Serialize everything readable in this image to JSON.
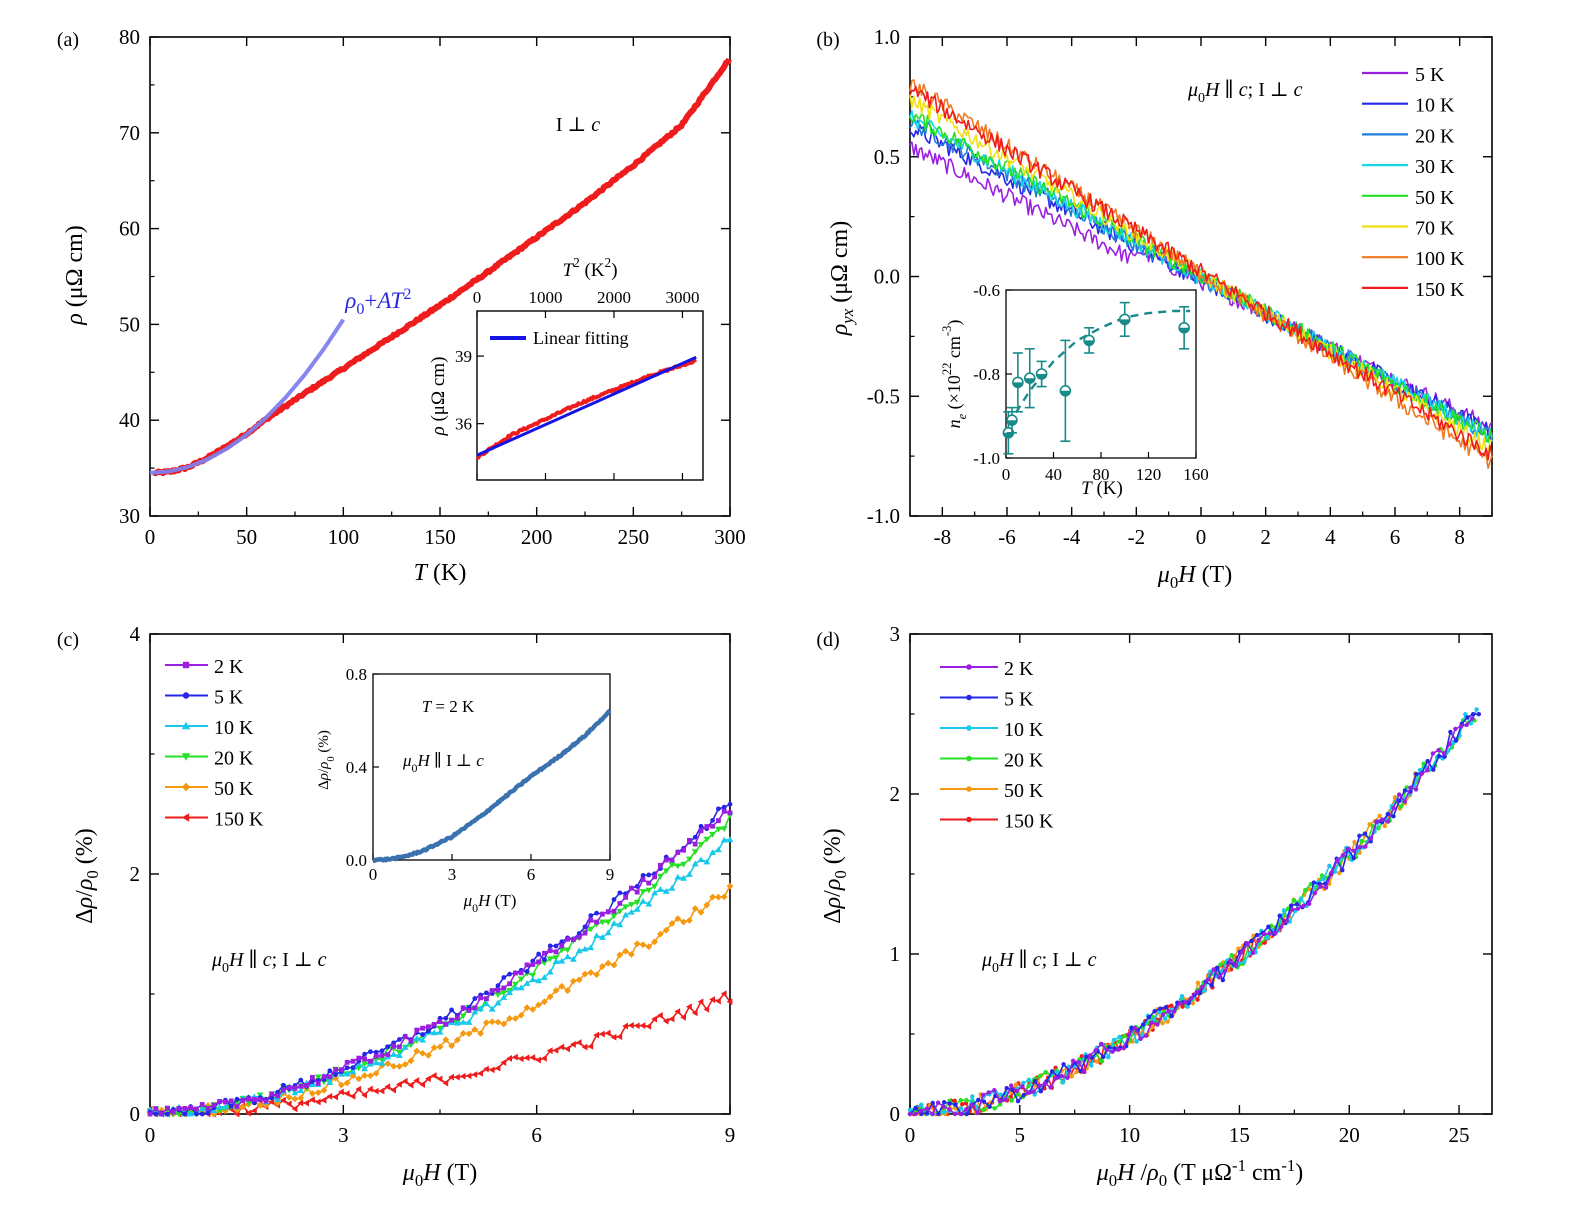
{
  "chart_data": [
    {
      "panel": "(a)",
      "type": "line",
      "xlabel": "T (K)",
      "ylabel": "ρ (μΩ cm)",
      "xlim": [
        0,
        300
      ],
      "ylim": [
        30,
        80
      ],
      "xticks": [
        0,
        50,
        100,
        150,
        200,
        250,
        300
      ],
      "yticks": [
        30,
        40,
        50,
        60,
        70,
        80
      ],
      "annotation": "I ⊥ c",
      "fit_label": "ρ0+AT2",
      "series": [
        {
          "name": "data",
          "color": "#ee1c1c",
          "x": [
            2,
            10,
            20,
            30,
            40,
            50,
            60,
            80,
            100,
            125,
            150,
            175,
            200,
            225,
            250,
            275,
            300
          ],
          "y": [
            34.5,
            34.6,
            35.1,
            36.1,
            37.3,
            38.6,
            40.1,
            42.8,
            45.4,
            48.7,
            52.0,
            55.5,
            59.1,
            62.7,
            66.6,
            70.8,
            77.8
          ]
        },
        {
          "name": "fit ρ0+AT2",
          "color": "#8080f0",
          "x": [
            0,
            10,
            20,
            30,
            40,
            50,
            60,
            70,
            80,
            90,
            100
          ],
          "y": [
            34.5,
            34.66,
            35.14,
            35.94,
            37.06,
            38.5,
            40.26,
            42.34,
            44.74,
            47.46,
            50.5
          ]
        }
      ],
      "inset": {
        "type": "line",
        "xlabel": "T2 (K2)",
        "ylabel": "ρ (μΩ cm)",
        "xlim": [
          0,
          3300
        ],
        "ylim": [
          33.5,
          41
        ],
        "xticks": [
          0,
          1000,
          2000,
          3000
        ],
        "yticks": [
          36,
          39
        ],
        "legend": "Linear fitting",
        "series": [
          {
            "name": "data",
            "color": "#ee1c1c",
            "x": [
              0,
              500,
              1000,
              1500,
              2000,
              2500,
              3000,
              3200
            ],
            "y": [
              34.5,
              35.5,
              36.2,
              36.9,
              37.5,
              38.1,
              38.6,
              38.8
            ]
          },
          {
            "name": "Linear fitting",
            "color": "#1414e6",
            "x": [
              0,
              3200
            ],
            "y": [
              34.6,
              38.95
            ]
          }
        ]
      }
    },
    {
      "panel": "(b)",
      "type": "line",
      "xlabel": "μ0H (T)",
      "ylabel": "ρyx (μΩ cm)",
      "xlim": [
        -9,
        9
      ],
      "ylim": [
        -1.0,
        1.0
      ],
      "xticks": [
        -8,
        -6,
        -4,
        -2,
        0,
        2,
        4,
        6,
        8
      ],
      "yticks": [
        -1.0,
        -0.5,
        0.0,
        0.5,
        1.0
      ],
      "annotation": "μ0H ∥ c;  I ⊥ c",
      "series": [
        {
          "name": "5 K",
          "color": "#9a1fe0",
          "slope": -0.068
        },
        {
          "name": "10 K",
          "color": "#2626e8",
          "slope": -0.071
        },
        {
          "name": "20 K",
          "color": "#1f7ed8",
          "slope": -0.073
        },
        {
          "name": "30 K",
          "color": "#17d8ea",
          "slope": -0.074
        },
        {
          "name": "50 K",
          "color": "#25e025",
          "slope": -0.075
        },
        {
          "name": "70 K",
          "color": "#f0e010",
          "slope": -0.081
        },
        {
          "name": "100 K",
          "color": "#f07820",
          "slope": -0.088
        },
        {
          "name": "150 K",
          "color": "#ee1c1c",
          "slope": -0.085
        }
      ],
      "inset": {
        "type": "scatter",
        "xlabel": "T (K)",
        "ylabel": "ne (×1022 cm-3)",
        "xlim": [
          0,
          160
        ],
        "ylim": [
          -1.0,
          -0.6
        ],
        "xticks": [
          0,
          40,
          80,
          120,
          160
        ],
        "yticks": [
          -1.0,
          -0.8,
          -0.6
        ],
        "points": [
          {
            "x": 2,
            "y": -0.94,
            "err": 0.05
          },
          {
            "x": 5,
            "y": -0.91,
            "err": 0.03
          },
          {
            "x": 10,
            "y": -0.82,
            "err": 0.07
          },
          {
            "x": 20,
            "y": -0.81,
            "err": 0.07
          },
          {
            "x": 30,
            "y": -0.8,
            "err": 0.03
          },
          {
            "x": 50,
            "y": -0.84,
            "err": 0.12
          },
          {
            "x": 70,
            "y": -0.72,
            "err": 0.03
          },
          {
            "x": 100,
            "y": -0.67,
            "err": 0.04
          },
          {
            "x": 150,
            "y": -0.69,
            "err": 0.05
          }
        ],
        "fit": {
          "x": [
            2,
            20,
            40,
            60,
            80,
            100,
            120,
            140,
            155
          ],
          "y": [
            -0.92,
            -0.84,
            -0.77,
            -0.72,
            -0.69,
            -0.665,
            -0.655,
            -0.65,
            -0.65
          ]
        }
      }
    },
    {
      "panel": "(c)",
      "type": "line",
      "xlabel": "μ0H (T)",
      "ylabel": "Δρ/ρ0 (%)",
      "xlim": [
        0,
        9
      ],
      "ylim": [
        0,
        4
      ],
      "xticks": [
        0,
        3,
        6,
        9
      ],
      "yticks": [
        0,
        2,
        4
      ],
      "annotation": "μ0H ∥ c;  I ⊥ c",
      "series": [
        {
          "name": "2 K",
          "color": "#9a1fe0",
          "marker": "square",
          "end": 2.55
        },
        {
          "name": "5 K",
          "color": "#2626e8",
          "marker": "circle",
          "end": 2.6
        },
        {
          "name": "10 K",
          "color": "#17c8ea",
          "marker": "triangle",
          "end": 2.3
        },
        {
          "name": "20 K",
          "color": "#25e025",
          "marker": "triangle-down",
          "end": 2.45
        },
        {
          "name": "50 K",
          "color": "#f59a10",
          "marker": "diamond",
          "end": 1.87
        },
        {
          "name": "150 K",
          "color": "#ee1c1c",
          "marker": "triangle-left",
          "end": 0.98
        }
      ],
      "inset": {
        "type": "line",
        "xlabel": "μ0H (T)",
        "ylabel": "Δρ/ρ0 (%)",
        "xlim": [
          0,
          9
        ],
        "ylim": [
          0,
          0.8
        ],
        "xticks": [
          0,
          3,
          6,
          9
        ],
        "yticks": [
          0.0,
          0.4,
          0.8
        ],
        "annotation_1": "T = 2 K",
        "annotation_2": "μ0H ∥ I ⊥ c",
        "series": [
          {
            "name": "2 K",
            "color": "#3a72b0",
            "x": [
              0,
              0.5,
              1,
              1.5,
              2,
              3,
              4,
              5,
              6,
              7,
              8,
              9
            ],
            "y": [
              0,
              0.002,
              0.01,
              0.025,
              0.045,
              0.1,
              0.18,
              0.27,
              0.36,
              0.44,
              0.53,
              0.64
            ]
          }
        ]
      }
    },
    {
      "panel": "(d)",
      "type": "line",
      "xlabel": "μ0H /ρ0 (T μΩ-1 cm-1)",
      "ylabel": "Δρ/ρ0 (%)",
      "xlim": [
        0,
        26.5
      ],
      "ylim": [
        0,
        3
      ],
      "xticks": [
        0,
        5,
        10,
        15,
        20,
        25
      ],
      "yticks": [
        0,
        1,
        2,
        3
      ],
      "annotation": "μ0H ∥ c;  I ⊥ c",
      "series": [
        {
          "name": "2 K",
          "color": "#9a1fe0",
          "xmax": 25.6,
          "end": 2.55
        },
        {
          "name": "5 K",
          "color": "#2626e8",
          "xmax": 25.9,
          "end": 2.6
        },
        {
          "name": "10 K",
          "color": "#17c8ea",
          "xmax": 25.8,
          "end": 2.3
        },
        {
          "name": "20 K",
          "color": "#25e025",
          "xmax": 25.7,
          "end": 2.45
        },
        {
          "name": "50 K",
          "color": "#f59a10",
          "xmax": 23.0,
          "end": 1.87
        },
        {
          "name": "150 K",
          "color": "#ee1c1c",
          "xmax": 17.0,
          "end": 0.98
        }
      ]
    }
  ]
}
